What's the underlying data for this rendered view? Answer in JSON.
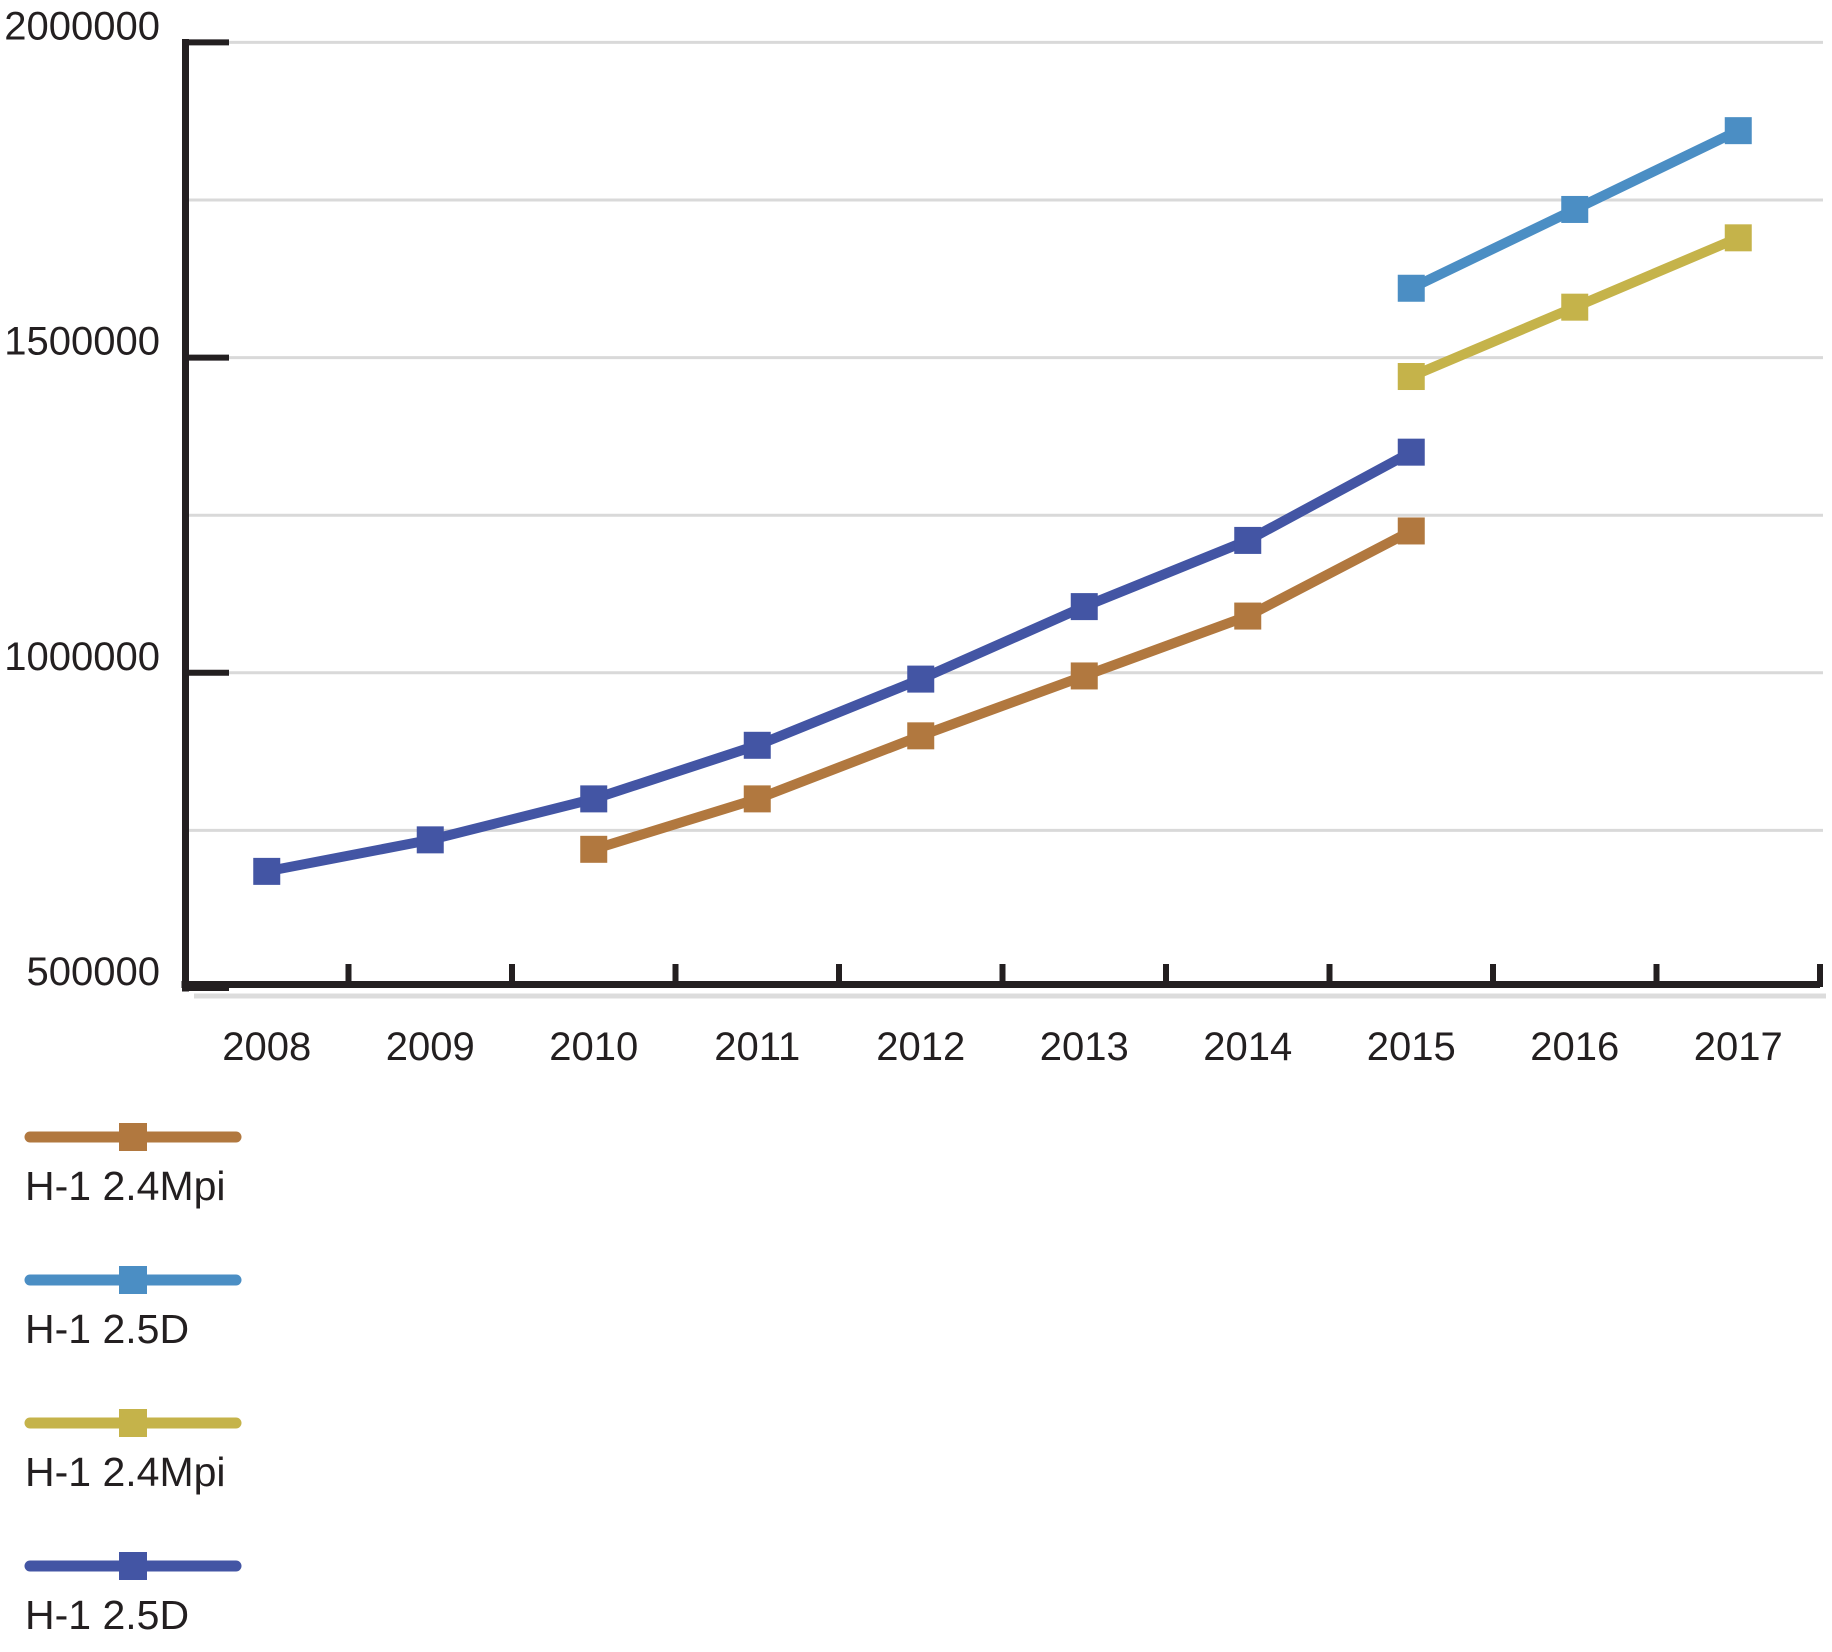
{
  "chart_data": {
    "type": "line",
    "title": "",
    "xlabel": "",
    "ylabel": "",
    "categories": [
      "2008",
      "2009",
      "2010",
      "2011",
      "2012",
      "2013",
      "2014",
      "2015",
      "2016",
      "2017"
    ],
    "ylim": [
      500000,
      2000000
    ],
    "y_tick_values": [
      500000,
      1000000,
      1500000,
      2000000
    ],
    "y_tick_labels": [
      "500000",
      "1000000",
      "1500000",
      "2000000"
    ],
    "gridline_step": 250000,
    "grid": true,
    "legend_position": "bottom-left",
    "marker": "square",
    "series": [
      {
        "name": "H-1 2.4Mpi",
        "color": "#b1783f",
        "marker": "square",
        "values": [
          null,
          null,
          720000,
          800000,
          900000,
          995000,
          1090000,
          1225000,
          null,
          null
        ]
      },
      {
        "name": "H-1 2.5D",
        "color": "#4b8ec4",
        "marker": "square",
        "values": [
          null,
          null,
          null,
          null,
          null,
          null,
          null,
          1610000,
          1735000,
          1860000
        ]
      },
      {
        "name": "H-1 2.4Mpi",
        "color": "#c5b34a",
        "marker": "square",
        "values": [
          null,
          null,
          null,
          null,
          null,
          null,
          null,
          1470000,
          1580000,
          1690000
        ]
      },
      {
        "name": "H-1 2.5D",
        "color": "#4355a4",
        "marker": "square",
        "values": [
          685000,
          735000,
          800000,
          885000,
          990000,
          1105000,
          1210000,
          1350000,
          null,
          null
        ]
      }
    ]
  },
  "legend": {
    "items": [
      {
        "label": "H-1 2.4Mpi",
        "color": "#b1783f"
      },
      {
        "label": "H-1 2.5D",
        "color": "#4b8ec4"
      },
      {
        "label": "H-1 2.4Mpi",
        "color": "#c5b34a"
      },
      {
        "label": "H-1 2.5D",
        "color": "#4355a4"
      }
    ]
  },
  "colors": {
    "background": "#ffffff",
    "axis": "#231f20",
    "text": "#231f20",
    "gridline": "#d9d9d9",
    "axis_shadow": "#dcdcdc"
  }
}
